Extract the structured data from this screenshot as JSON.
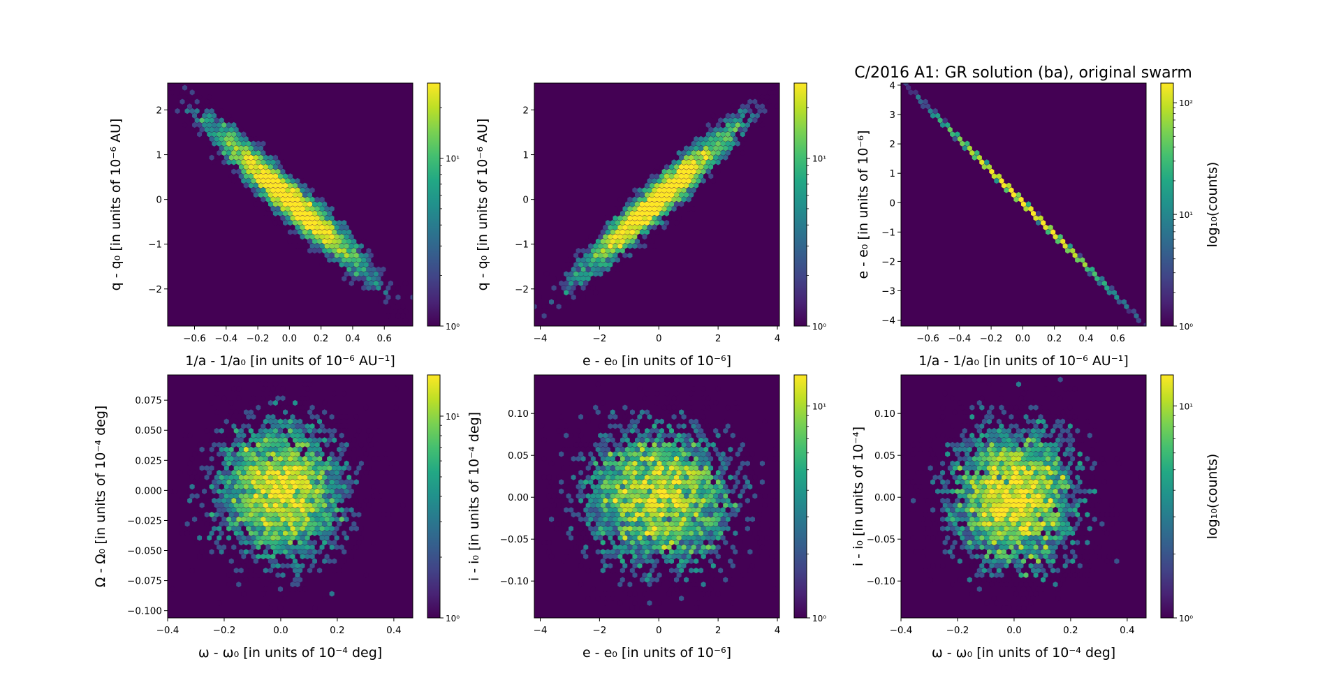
{
  "figure": {
    "title": "C/2016 A1: GR solution (ba), original swarm"
  },
  "chart_data": [
    {
      "type": "heatmap",
      "subtype": "hexbin",
      "panel": "top-left",
      "xlabel": "1/a - 1/a₀ [in units of 10⁻⁶ AU⁻¹]",
      "ylabel": "q - q₀ [in units of 10⁻⁶ AU]",
      "xlim": [
        -0.77,
        0.78
      ],
      "ylim": [
        -2.83,
        2.6
      ],
      "xticks": [
        -0.6,
        -0.4,
        -0.2,
        0.0,
        0.2,
        0.4,
        0.6
      ],
      "xtick_labels": [
        "−0.6",
        "−0.4",
        "−0.2",
        "0.0",
        "0.2",
        "0.4",
        "0.6"
      ],
      "yticks": [
        -2,
        -1,
        0,
        1,
        2
      ],
      "ytick_labels": [
        "−2",
        "−1",
        "0",
        "1",
        "2"
      ],
      "distribution": {
        "mean": [
          0,
          0
        ],
        "sigma": [
          0.25,
          0.85
        ],
        "correlation": -0.96,
        "samples": 5000
      },
      "colorbar": {
        "scale": "log",
        "vmin": 1,
        "vmax": 28,
        "ticks": [
          1,
          10
        ],
        "tick_labels": [
          "10⁰",
          "10¹"
        ],
        "label": ""
      }
    },
    {
      "type": "heatmap",
      "subtype": "hexbin",
      "panel": "top-middle",
      "xlabel": "e - e₀ [in units of 10⁻⁶]",
      "ylabel": "q - q₀ [in units of 10⁻⁶ AU]",
      "xlim": [
        -4.2,
        4.07
      ],
      "ylim": [
        -2.83,
        2.6
      ],
      "xticks": [
        -4,
        -2,
        0,
        2,
        4
      ],
      "xtick_labels": [
        "−4",
        "−2",
        "0",
        "2",
        "4"
      ],
      "yticks": [
        -2,
        -1,
        0,
        1,
        2
      ],
      "ytick_labels": [
        "−2",
        "−1",
        "0",
        "1",
        "2"
      ],
      "distribution": {
        "mean": [
          0,
          0
        ],
        "sigma": [
          1.35,
          0.85
        ],
        "correlation": 0.96,
        "samples": 5000
      },
      "colorbar": {
        "scale": "log",
        "vmin": 1,
        "vmax": 28,
        "ticks": [
          1,
          10
        ],
        "tick_labels": [
          "10⁰",
          "10¹"
        ],
        "label": ""
      }
    },
    {
      "type": "heatmap",
      "subtype": "hexbin",
      "panel": "top-right",
      "xlabel": "1/a - 1/a₀ [in units of 10⁻⁶ AU⁻¹]",
      "ylabel": "e - e₀ [in units of 10⁻⁶]",
      "xlim": [
        -0.77,
        0.78
      ],
      "ylim": [
        -4.2,
        4.07
      ],
      "xticks": [
        -0.6,
        -0.4,
        -0.2,
        0.0,
        0.2,
        0.4,
        0.6
      ],
      "xtick_labels": [
        "−0.6",
        "−0.4",
        "−0.2",
        "0.0",
        "0.2",
        "0.4",
        "0.6"
      ],
      "yticks": [
        -4,
        -3,
        -2,
        -1,
        0,
        1,
        2,
        3,
        4
      ],
      "ytick_labels": [
        "−4",
        "−3",
        "−2",
        "−1",
        "0",
        "1",
        "2",
        "3",
        "4"
      ],
      "distribution": {
        "mean": [
          0,
          0
        ],
        "sigma": [
          0.25,
          1.35
        ],
        "correlation": -1.0,
        "samples": 5000
      },
      "colorbar": {
        "scale": "log",
        "vmin": 1,
        "vmax": 150,
        "ticks": [
          1,
          10,
          100
        ],
        "tick_labels": [
          "10⁰",
          "10¹",
          "10²"
        ],
        "label": "log₁₀(counts)"
      }
    },
    {
      "type": "heatmap",
      "subtype": "hexbin",
      "panel": "bottom-left",
      "xlabel": "ω - ω₀ [in units of 10⁻⁴ deg]",
      "ylabel": "Ω - Ω₀ [in units of 10⁻⁴ deg]",
      "xlim": [
        -0.4,
        0.467
      ],
      "ylim": [
        -0.106,
        0.096
      ],
      "xticks": [
        -0.4,
        -0.2,
        0.0,
        0.2,
        0.4
      ],
      "xtick_labels": [
        "−0.4",
        "−0.2",
        "0.0",
        "0.2",
        "0.4"
      ],
      "yticks": [
        -0.1,
        -0.075,
        -0.05,
        -0.025,
        0.0,
        0.025,
        0.05,
        0.075
      ],
      "ytick_labels": [
        "−0.100",
        "−0.075",
        "−0.050",
        "−0.025",
        "0.000",
        "0.025",
        "0.050",
        "0.075"
      ],
      "distribution": {
        "mean": [
          0,
          0
        ],
        "sigma": [
          0.12,
          0.03
        ],
        "correlation": 0.0,
        "samples": 5000
      },
      "colorbar": {
        "scale": "log",
        "vmin": 1,
        "vmax": 16,
        "ticks": [
          1,
          10
        ],
        "tick_labels": [
          "10⁰",
          "10¹"
        ],
        "label": ""
      }
    },
    {
      "type": "heatmap",
      "subtype": "hexbin",
      "panel": "bottom-middle",
      "xlabel": "e - e₀ [in units of 10⁻⁶]",
      "ylabel": "i - i₀ [in units of 10⁻⁴ deg]",
      "xlim": [
        -4.2,
        4.07
      ],
      "ylim": [
        -0.144,
        0.146
      ],
      "xticks": [
        -4,
        -2,
        0,
        2,
        4
      ],
      "xtick_labels": [
        "−4",
        "−2",
        "0",
        "2",
        "4"
      ],
      "yticks": [
        -0.1,
        -0.05,
        0.0,
        0.05,
        0.1
      ],
      "ytick_labels": [
        "−0.10",
        "−0.05",
        "0.00",
        "0.05",
        "0.10"
      ],
      "distribution": {
        "mean": [
          0,
          0
        ],
        "sigma": [
          1.35,
          0.045
        ],
        "correlation": 0.0,
        "samples": 5000
      },
      "colorbar": {
        "scale": "log",
        "vmin": 1,
        "vmax": 14,
        "ticks": [
          1,
          10
        ],
        "tick_labels": [
          "10⁰",
          "10¹"
        ],
        "label": ""
      }
    },
    {
      "type": "heatmap",
      "subtype": "hexbin",
      "panel": "bottom-right",
      "xlabel": "ω - ω₀ [in units of 10⁻⁴ deg]",
      "ylabel": "i - i₀ [in units of 10⁻⁴]",
      "xlim": [
        -0.4,
        0.467
      ],
      "ylim": [
        -0.144,
        0.146
      ],
      "xticks": [
        -0.4,
        -0.2,
        0.0,
        0.2,
        0.4
      ],
      "xtick_labels": [
        "−0.4",
        "−0.2",
        "0.0",
        "0.2",
        "0.4"
      ],
      "yticks": [
        -0.1,
        -0.05,
        0.0,
        0.05,
        0.1
      ],
      "ytick_labels": [
        "−0.10",
        "−0.05",
        "0.00",
        "0.05",
        "0.10"
      ],
      "distribution": {
        "mean": [
          0,
          0
        ],
        "sigma": [
          0.12,
          0.045
        ],
        "correlation": 0.0,
        "samples": 5000
      },
      "colorbar": {
        "scale": "log",
        "vmin": 1,
        "vmax": 14,
        "ticks": [
          1,
          10
        ],
        "tick_labels": [
          "10⁰",
          "10¹"
        ],
        "label": "log₁₀(counts)"
      }
    }
  ],
  "colors": {
    "background": "#440154",
    "colormap": "viridis",
    "axes_edge": "#000000"
  }
}
